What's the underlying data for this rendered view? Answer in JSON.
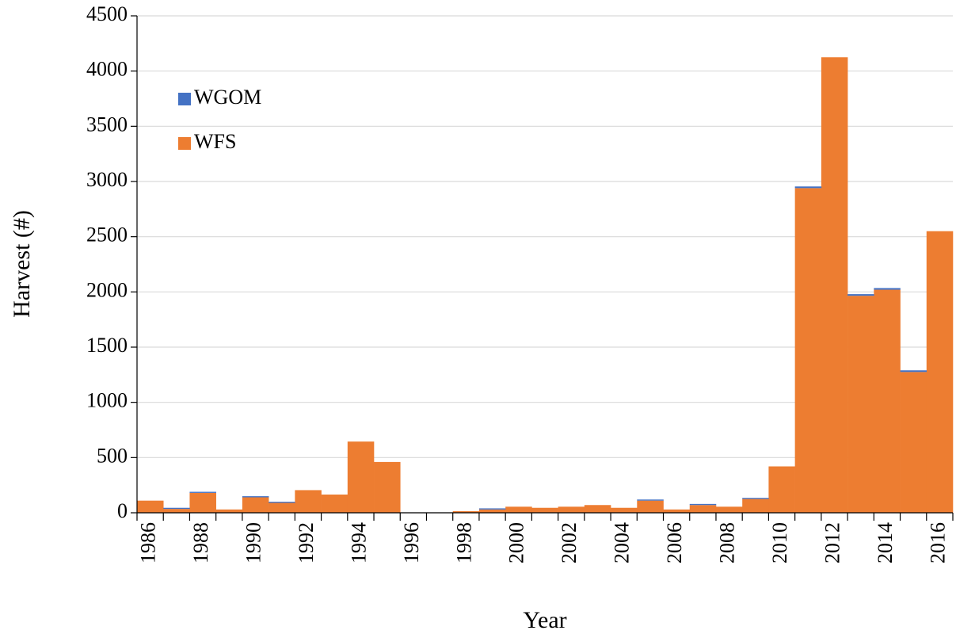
{
  "chart_data": {
    "type": "stacked_bar",
    "x_label": "Year",
    "y_label": "Harvest  (#)",
    "categories": [
      "1986",
      null,
      "1988",
      null,
      "1990",
      null,
      "1992",
      null,
      "1994",
      null,
      "1996",
      null,
      "1998",
      null,
      "2000",
      null,
      "2002",
      null,
      "2004",
      null,
      "2006",
      null,
      "2008",
      null,
      "2010",
      null,
      "2012",
      null,
      "2014",
      null,
      "2016"
    ],
    "series": [
      {
        "name": "WFS",
        "color": "#ed7d31",
        "values": [
          110,
          35,
          180,
          30,
          140,
          90,
          205,
          165,
          645,
          460,
          0,
          0,
          15,
          30,
          55,
          45,
          55,
          70,
          45,
          110,
          30,
          70,
          55,
          125,
          420,
          2940,
          4125,
          1965,
          2020,
          1275,
          2550
        ]
      },
      {
        "name": "WGOM",
        "color": "#4472c4",
        "values": [
          0,
          10,
          10,
          0,
          10,
          10,
          0,
          0,
          0,
          0,
          0,
          0,
          0,
          10,
          0,
          0,
          0,
          0,
          0,
          10,
          0,
          10,
          0,
          10,
          0,
          15,
          0,
          15,
          15,
          15,
          0
        ]
      }
    ],
    "ylim": [
      0,
      4500
    ],
    "yticks": [
      0,
      500,
      1000,
      1500,
      2000,
      2500,
      3000,
      3500,
      4000,
      4500
    ],
    "grid": true,
    "legend": "upper left"
  }
}
